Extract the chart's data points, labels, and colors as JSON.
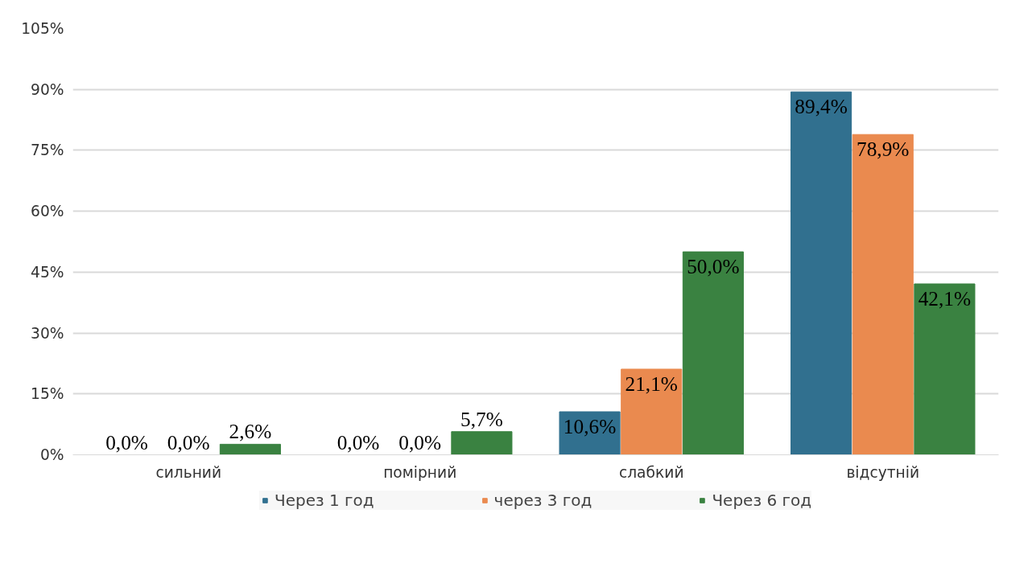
{
  "chart_data": {
    "type": "bar",
    "categories": [
      "сильний",
      "помірний",
      "слабкий",
      "відсутній"
    ],
    "series": [
      {
        "name": "Через 1 год",
        "color": "#31708f",
        "values": [
          0.0,
          0.0,
          10.6,
          89.4
        ],
        "value_labels": [
          "0,0%",
          "0,0%",
          "10,6%",
          "89,4%"
        ]
      },
      {
        "name": "через 3 год",
        "color": "#ea8a4f",
        "values": [
          0.0,
          0.0,
          21.1,
          78.9
        ],
        "value_labels": [
          "0,0%",
          "0,0%",
          "21,1%",
          "78,9%"
        ]
      },
      {
        "name": "Через 6 год",
        "color": "#3a8241",
        "values": [
          2.6,
          5.7,
          50.0,
          42.1
        ],
        "value_labels": [
          "2,6%",
          "5,7%",
          "50,0%",
          "42,1%"
        ]
      }
    ],
    "ylim": [
      0,
      105
    ],
    "yticks": [
      {
        "value": 0,
        "label": "0%"
      },
      {
        "value": 15,
        "label": "15%"
      },
      {
        "value": 30,
        "label": "30%"
      },
      {
        "value": 45,
        "label": "45%"
      },
      {
        "value": 60,
        "label": "60%"
      },
      {
        "value": 75,
        "label": "75%"
      },
      {
        "value": 90,
        "label": "90%"
      },
      {
        "value": 105,
        "label": "105%"
      }
    ],
    "grid": "y",
    "legend": "bottom"
  }
}
